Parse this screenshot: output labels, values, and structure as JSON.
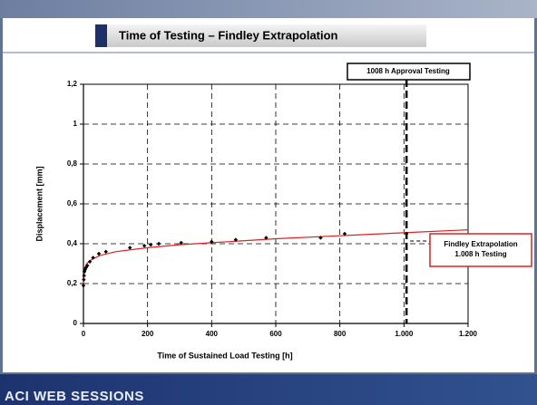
{
  "title": "Time of Testing – Findley Extrapolation",
  "footer": "ACI WEB SESSIONS",
  "chart_data": {
    "type": "scatter",
    "xlabel": "Time of Sustained Load Testing [h]",
    "ylabel": "Displacement [mm]",
    "xlim": [
      0,
      1200
    ],
    "ylim": [
      0,
      1.2
    ],
    "xticks": [
      0,
      200,
      400,
      600,
      800,
      {
        "value": 1000,
        "label": "1.000"
      },
      {
        "value": 1200,
        "label": "1.200"
      }
    ],
    "yticks": [
      0,
      {
        "value": 0.2,
        "label": "0,2"
      },
      {
        "value": 0.4,
        "label": "0,4"
      },
      {
        "value": 0.6,
        "label": "0,6"
      },
      {
        "value": 0.8,
        "label": "0,8"
      },
      1,
      {
        "value": 1.2,
        "label": "1,2"
      }
    ],
    "grid": true,
    "points": {
      "color": "#000000",
      "x": [
        0,
        1,
        2,
        3,
        5,
        8,
        12,
        20,
        30,
        48,
        70,
        145,
        190,
        210,
        235,
        305,
        400,
        475,
        570,
        740,
        815,
        1008
      ],
      "y": [
        0.19,
        0.22,
        0.24,
        0.26,
        0.27,
        0.28,
        0.29,
        0.31,
        0.33,
        0.35,
        0.36,
        0.38,
        0.39,
        0.395,
        0.4,
        0.405,
        0.41,
        0.42,
        0.43,
        0.43,
        0.45,
        0.45
      ]
    },
    "fit": {
      "color": "#e02020",
      "x": [
        0,
        1,
        5,
        10,
        25,
        50,
        100,
        200,
        300,
        400,
        600,
        800,
        1000,
        1200
      ],
      "y": [
        0.19,
        0.24,
        0.28,
        0.3,
        0.32,
        0.34,
        0.36,
        0.38,
        0.395,
        0.405,
        0.425,
        0.44,
        0.455,
        0.47
      ]
    },
    "approval": {
      "x": 1008,
      "text": "1008 h Approval Testing"
    },
    "findley_note": [
      "Findley Extrapolation",
      "1.008 h Testing"
    ]
  }
}
